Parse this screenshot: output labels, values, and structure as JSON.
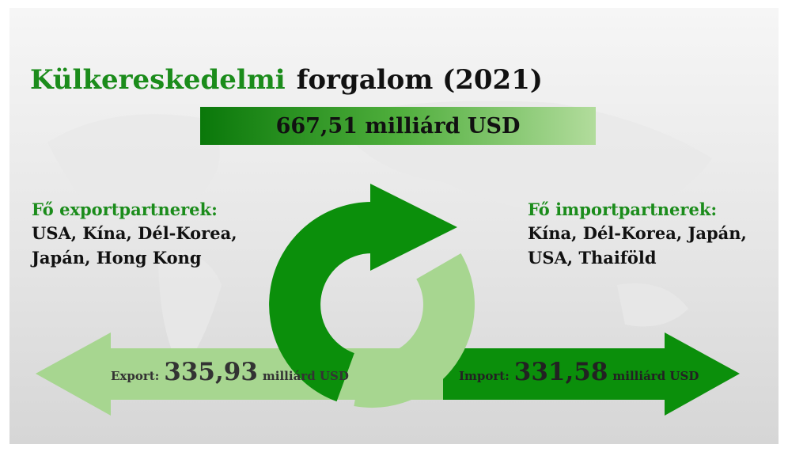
{
  "title": {
    "part1": "Külkereskedelmi",
    "part2": "forgalom (2021)"
  },
  "total": "667,51 milliárd USD",
  "export_partners": {
    "heading": "Fő exportpartnerek:",
    "lines": [
      "USA, Kína, Dél-Korea,",
      "Japán, Hong Kong"
    ]
  },
  "import_partners": {
    "heading": "Fő importpartnerek:",
    "lines": [
      "Kína, Dél-Korea, Japán,",
      "USA, Thaiföld"
    ]
  },
  "export": {
    "label": "Export:",
    "value": "335,93",
    "unit": "milliárd USD"
  },
  "import": {
    "label": "Import:",
    "value": "331,58",
    "unit": "milliárd USD"
  }
}
